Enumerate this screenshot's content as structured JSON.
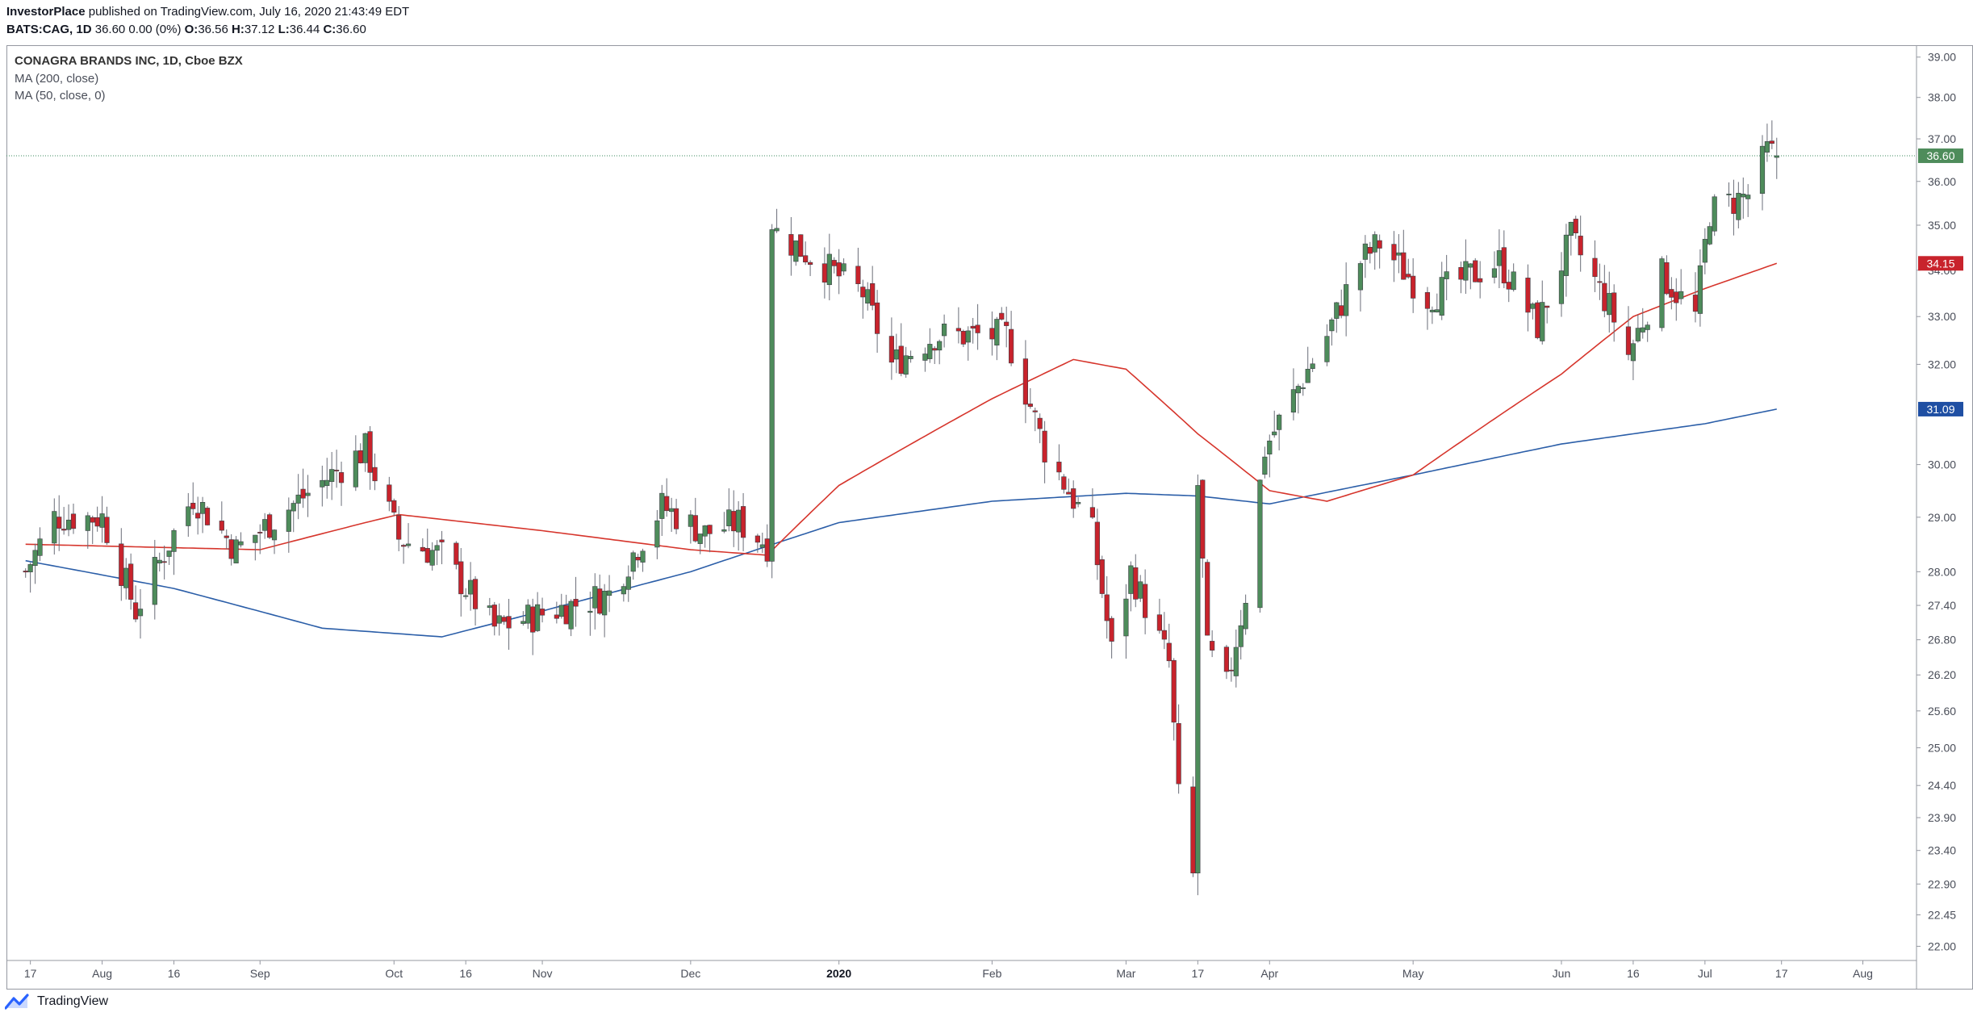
{
  "header": {
    "author": "InvestorPlace",
    "published_text": " published on TradingView.com, July 16, 2020 21:43:49 EDT",
    "ticker": "BATS:CAG, 1D",
    "ohlc_text": " 36.60 0.00 (0%) ",
    "o_label": "O:",
    "o_value": "36.56 ",
    "h_label": "H:",
    "h_value": "37.12 ",
    "l_label": "L:",
    "l_value": "36.44 ",
    "c_label": "C:",
    "c_value": "36.60"
  },
  "legend": {
    "title": "CONAGRA BRANDS INC, 1D, Cboe BZX",
    "ma200": "MA (200, close)",
    "ma50": "MA (50, close, 0)"
  },
  "footer": {
    "brand": "TradingView"
  },
  "colors": {
    "up": "#4e8c5b",
    "down": "#c8232c",
    "ma50": "#d6352c",
    "ma200": "#2b5ea8",
    "price_line": "#3b8a5e",
    "axis_text": "#4a4e59"
  },
  "chart_data": {
    "type": "candlestick",
    "y_scale": "log",
    "ylim": [
      21.8,
      39.3
    ],
    "y_ticks": [
      "39.00",
      "38.00",
      "37.00",
      "36.00",
      "35.00",
      "34.00",
      "33.00",
      "32.00",
      "30.00",
      "29.00",
      "28.00",
      "27.40",
      "26.80",
      "26.20",
      "25.60",
      "25.00",
      "24.40",
      "23.90",
      "23.40",
      "22.90",
      "22.45",
      "22.00"
    ],
    "x_ticks": [
      {
        "label": "17",
        "date": "2019-07-17",
        "bold": false
      },
      {
        "label": "Aug",
        "date": "2019-08-01",
        "bold": false
      },
      {
        "label": "16",
        "date": "2019-08-16",
        "bold": false
      },
      {
        "label": "Sep",
        "date": "2019-09-03",
        "bold": false
      },
      {
        "label": "Oct",
        "date": "2019-10-01",
        "bold": false
      },
      {
        "label": "16",
        "date": "2019-10-16",
        "bold": false
      },
      {
        "label": "Nov",
        "date": "2019-11-01",
        "bold": false
      },
      {
        "label": "Dec",
        "date": "2019-12-02",
        "bold": false
      },
      {
        "label": "2020",
        "date": "2020-01-02",
        "bold": true
      },
      {
        "label": "Feb",
        "date": "2020-02-03",
        "bold": false
      },
      {
        "label": "Mar",
        "date": "2020-03-02",
        "bold": false
      },
      {
        "label": "17",
        "date": "2020-03-17",
        "bold": false
      },
      {
        "label": "Apr",
        "date": "2020-04-01",
        "bold": false
      },
      {
        "label": "May",
        "date": "2020-05-01",
        "bold": false
      },
      {
        "label": "Jun",
        "date": "2020-06-01",
        "bold": false
      },
      {
        "label": "16",
        "date": "2020-06-16",
        "bold": false
      },
      {
        "label": "Jul",
        "date": "2020-07-01",
        "bold": false
      },
      {
        "label": "17",
        "date": "2020-07-17",
        "bold": false
      },
      {
        "label": "Aug",
        "date": "2020-08-03",
        "bold": false
      }
    ],
    "markers": [
      {
        "label": "36.60",
        "value": 36.6,
        "color": "#4e8c5b"
      },
      {
        "label": "34.15",
        "value": 34.15,
        "color": "#c8232c"
      },
      {
        "label": "31.09",
        "value": 31.09,
        "color": "#1f4fa3"
      }
    ],
    "current_price": 36.6,
    "anchors": [
      {
        "date": "2019-07-16",
        "price": 28.0
      },
      {
        "date": "2019-07-22",
        "price": 29.0
      },
      {
        "date": "2019-08-01",
        "price": 29.0
      },
      {
        "date": "2019-08-08",
        "price": 27.3
      },
      {
        "date": "2019-08-20",
        "price": 29.4
      },
      {
        "date": "2019-08-29",
        "price": 28.4
      },
      {
        "date": "2019-09-25",
        "price": 30.3
      },
      {
        "date": "2019-10-02",
        "price": 28.6
      },
      {
        "date": "2019-10-11",
        "price": 28.3
      },
      {
        "date": "2019-10-22",
        "price": 27.0
      },
      {
        "date": "2019-11-15",
        "price": 27.6
      },
      {
        "date": "2019-11-26",
        "price": 29.2
      },
      {
        "date": "2019-12-05",
        "price": 28.7
      },
      {
        "date": "2019-12-12",
        "price": 28.9
      },
      {
        "date": "2019-12-18",
        "price": 28.5
      },
      {
        "date": "2019-12-19",
        "price": 34.9
      },
      {
        "date": "2020-01-07",
        "price": 33.5
      },
      {
        "date": "2020-01-13",
        "price": 32.0
      },
      {
        "date": "2020-01-22",
        "price": 32.6
      },
      {
        "date": "2020-02-06",
        "price": 32.6
      },
      {
        "date": "2020-02-14",
        "price": 30.3
      },
      {
        "date": "2020-02-24",
        "price": 28.7
      },
      {
        "date": "2020-02-28",
        "price": 26.6
      },
      {
        "date": "2020-03-03",
        "price": 28.0
      },
      {
        "date": "2020-03-11",
        "price": 26.4
      },
      {
        "date": "2020-03-13",
        "price": 24.2
      },
      {
        "date": "2020-03-16",
        "price": 23.0
      },
      {
        "date": "2020-03-17",
        "price": 29.6
      },
      {
        "date": "2020-03-19",
        "price": 26.6
      },
      {
        "date": "2020-03-23",
        "price": 26.0
      },
      {
        "date": "2020-03-27",
        "price": 27.6
      },
      {
        "date": "2020-03-31",
        "price": 30.3
      },
      {
        "date": "2020-04-13",
        "price": 32.6
      },
      {
        "date": "2020-04-20",
        "price": 34.2
      },
      {
        "date": "2020-04-24",
        "price": 34.6
      },
      {
        "date": "2020-05-04",
        "price": 33.4
      },
      {
        "date": "2020-05-19",
        "price": 34.2
      },
      {
        "date": "2020-05-27",
        "price": 32.8
      },
      {
        "date": "2020-06-03",
        "price": 34.7
      },
      {
        "date": "2020-06-11",
        "price": 33.2
      },
      {
        "date": "2020-06-15",
        "price": 32.2
      },
      {
        "date": "2020-06-22",
        "price": 33.9
      },
      {
        "date": "2020-06-29",
        "price": 33.0
      },
      {
        "date": "2020-07-02",
        "price": 35.3
      },
      {
        "date": "2020-07-10",
        "price": 35.7
      },
      {
        "date": "2020-07-14",
        "price": 36.7
      },
      {
        "date": "2020-07-16",
        "price": 36.6
      }
    ],
    "ma50": [
      {
        "date": "2019-07-16",
        "price": 28.5
      },
      {
        "date": "2019-09-03",
        "price": 28.4
      },
      {
        "date": "2019-09-25",
        "price": 28.9
      },
      {
        "date": "2019-10-02",
        "price": 29.05
      },
      {
        "date": "2019-11-01",
        "price": 28.75
      },
      {
        "date": "2019-12-02",
        "price": 28.4
      },
      {
        "date": "2019-12-18",
        "price": 28.3
      },
      {
        "date": "2020-01-02",
        "price": 29.6
      },
      {
        "date": "2020-02-03",
        "price": 31.3
      },
      {
        "date": "2020-02-20",
        "price": 32.1
      },
      {
        "date": "2020-03-02",
        "price": 31.9
      },
      {
        "date": "2020-03-17",
        "price": 30.6
      },
      {
        "date": "2020-04-01",
        "price": 29.5
      },
      {
        "date": "2020-04-13",
        "price": 29.3
      },
      {
        "date": "2020-05-01",
        "price": 29.8
      },
      {
        "date": "2020-06-01",
        "price": 31.8
      },
      {
        "date": "2020-06-16",
        "price": 33.0
      },
      {
        "date": "2020-07-01",
        "price": 33.6
      },
      {
        "date": "2020-07-16",
        "price": 34.15
      }
    ],
    "ma200": [
      {
        "date": "2019-07-16",
        "price": 28.2
      },
      {
        "date": "2019-08-16",
        "price": 27.7
      },
      {
        "date": "2019-09-16",
        "price": 27.0
      },
      {
        "date": "2019-10-11",
        "price": 26.85
      },
      {
        "date": "2019-11-01",
        "price": 27.3
      },
      {
        "date": "2019-12-02",
        "price": 28.0
      },
      {
        "date": "2020-01-02",
        "price": 28.9
      },
      {
        "date": "2020-02-03",
        "price": 29.3
      },
      {
        "date": "2020-03-02",
        "price": 29.45
      },
      {
        "date": "2020-03-17",
        "price": 29.4
      },
      {
        "date": "2020-04-01",
        "price": 29.25
      },
      {
        "date": "2020-05-01",
        "price": 29.8
      },
      {
        "date": "2020-06-01",
        "price": 30.4
      },
      {
        "date": "2020-07-01",
        "price": 30.8
      },
      {
        "date": "2020-07-16",
        "price": 31.09
      }
    ]
  }
}
